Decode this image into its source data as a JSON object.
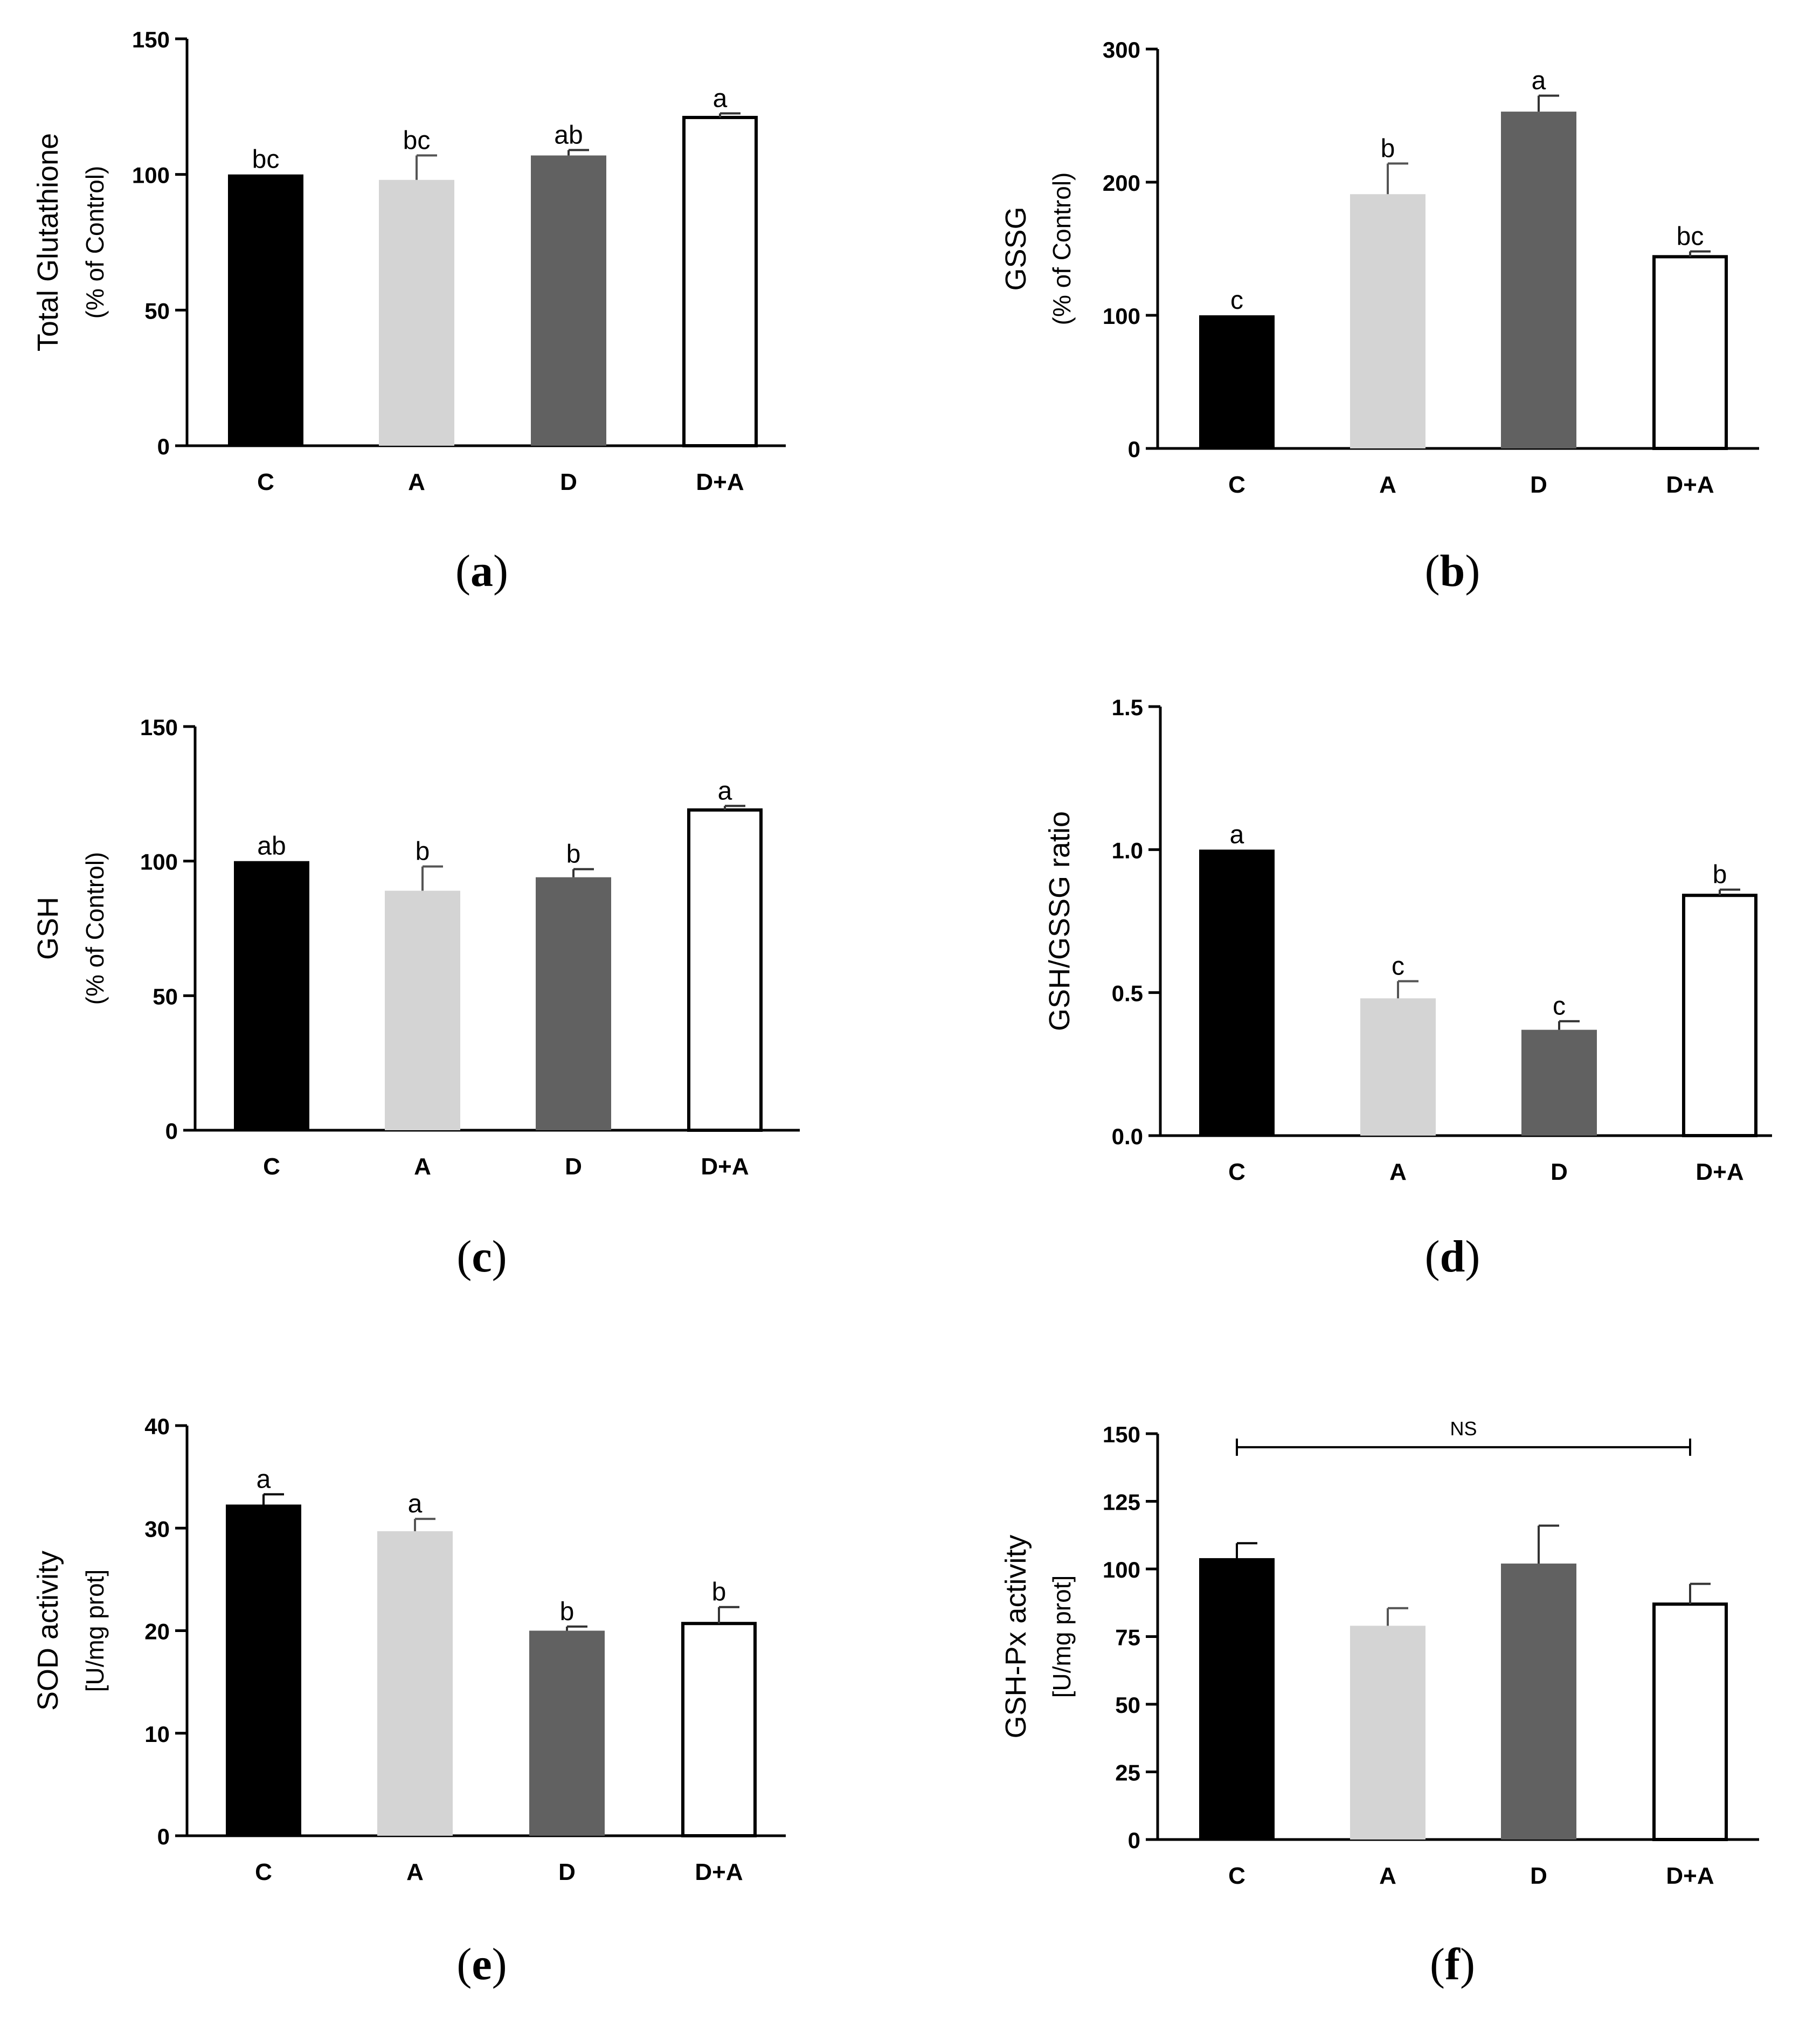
{
  "categories": [
    "C",
    "A",
    "D",
    "D+A"
  ],
  "colors": {
    "C": "#000000",
    "A": "#d4d4d4",
    "D": "#616161",
    "D+A": "#ffffff",
    "axis": "#000000"
  },
  "chart_data": [
    {
      "id": "a",
      "type": "bar",
      "caption_letter": "a",
      "ylabel_main": "Total Glutathione",
      "ylabel_sub": "(% of Control)",
      "ylim": [
        0,
        150
      ],
      "ticks": [
        0,
        50,
        100,
        150
      ],
      "tick_labels": [
        "0",
        "50",
        "100",
        "150"
      ],
      "categories": [
        "C",
        "A",
        "D",
        "D+A"
      ],
      "values": [
        100,
        98,
        107,
        121
      ],
      "errors": [
        0,
        9,
        2,
        1.5
      ],
      "letters": [
        "bc",
        "bc",
        "ab",
        "a"
      ]
    },
    {
      "id": "b",
      "type": "bar",
      "caption_letter": "b",
      "ylabel_main": "GSSG",
      "ylabel_sub": "(% of Control)",
      "ylim": [
        0,
        300
      ],
      "ticks": [
        0,
        100,
        200,
        300
      ],
      "tick_labels": [
        "0",
        "100",
        "200",
        "300"
      ],
      "categories": [
        "C",
        "A",
        "D",
        "D+A"
      ],
      "values": [
        100,
        191,
        253,
        144
      ],
      "errors": [
        0,
        23,
        12,
        4
      ],
      "letters": [
        "c",
        "b",
        "a",
        "bc"
      ]
    },
    {
      "id": "c",
      "type": "bar",
      "caption_letter": "c",
      "ylabel_main": "GSH",
      "ylabel_sub": "(% of Control)",
      "ylim": [
        0,
        150
      ],
      "ticks": [
        0,
        50,
        100,
        150
      ],
      "tick_labels": [
        "0",
        "50",
        "100",
        "150"
      ],
      "categories": [
        "C",
        "A",
        "D",
        "D+A"
      ],
      "values": [
        100,
        89,
        94,
        119
      ],
      "errors": [
        0,
        9,
        3,
        1.5
      ],
      "letters": [
        "ab",
        "b",
        "b",
        "a"
      ]
    },
    {
      "id": "d",
      "type": "bar",
      "caption_letter": "d",
      "ylabel_main": "GSH/GSSG ratio",
      "ylabel_sub": "",
      "ylim": [
        0,
        1.5
      ],
      "ticks": [
        0,
        0.5,
        1.0,
        1.5
      ],
      "tick_labels": [
        "0.0",
        "0.5",
        "1.0",
        "1.5"
      ],
      "categories": [
        "C",
        "A",
        "D",
        "D+A"
      ],
      "values": [
        1.0,
        0.48,
        0.37,
        0.84
      ],
      "errors": [
        0,
        0.06,
        0.03,
        0.02
      ],
      "letters": [
        "a",
        "c",
        "c",
        "b"
      ]
    },
    {
      "id": "e",
      "type": "bar",
      "caption_letter": "e",
      "ylabel_main": "SOD activity",
      "ylabel_sub": "[U/mg prot]",
      "ylim": [
        0,
        40
      ],
      "ticks": [
        0,
        10,
        20,
        30,
        40
      ],
      "tick_labels": [
        "0",
        "10",
        "20",
        "30",
        "40"
      ],
      "categories": [
        "C",
        "A",
        "D",
        "D+A"
      ],
      "values": [
        32.3,
        29.7,
        20.0,
        20.7
      ],
      "errors": [
        1.0,
        1.2,
        0.4,
        1.6
      ],
      "letters": [
        "a",
        "a",
        "b",
        "b"
      ]
    },
    {
      "id": "f",
      "type": "bar",
      "caption_letter": "f",
      "ylabel_main": "GSH-Px activity",
      "ylabel_sub": "[U/mg prot]",
      "ylim": [
        0,
        150
      ],
      "ticks": [
        0,
        25,
        50,
        75,
        100,
        125,
        150
      ],
      "tick_labels": [
        "0",
        "25",
        "50",
        "75",
        "100",
        "125",
        "150"
      ],
      "categories": [
        "C",
        "A",
        "D",
        "D+A"
      ],
      "values": [
        104,
        79,
        102,
        87
      ],
      "errors": [
        5.5,
        6.5,
        14,
        7.5
      ],
      "letters": [
        "",
        "",
        "",
        ""
      ],
      "annotation": "NS"
    }
  ]
}
